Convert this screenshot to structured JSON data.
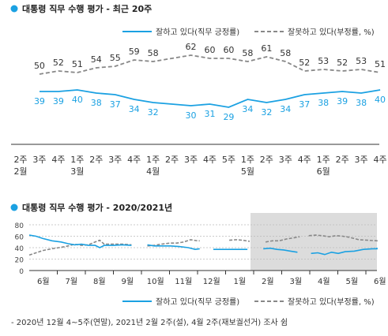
{
  "colors": {
    "approve": "#1ba1e2",
    "disapprove": "#888888",
    "bullet": "#1ba1e2",
    "shade": "#dcdcdc"
  },
  "chart_data": [
    {
      "type": "line",
      "title": "대통령 직무 수행 평가 - 최근 20주",
      "x_week": [
        "2주",
        "3주",
        "4주",
        "1주",
        "2주",
        "3주",
        "4주",
        "1주",
        "2주",
        "3주",
        "4주",
        "5주",
        "1주",
        "2주",
        "3주",
        "4주",
        "1주",
        "2주",
        "3주",
        "4주"
      ],
      "x_month": [
        "2월",
        "",
        "",
        "3월",
        "",
        "",
        "",
        "4월",
        "",
        "",
        "",
        "",
        "5월",
        "",
        "",
        "",
        "6월",
        "",
        "",
        ""
      ],
      "ylim": [
        0,
        80
      ],
      "series": [
        {
          "name": "잘하고 있다(직무 긍정률)",
          "style": "solid",
          "values": [
            null,
            39,
            39,
            40,
            38,
            37,
            34,
            32,
            null,
            30,
            31,
            29,
            34,
            32,
            34,
            37,
            38,
            39,
            38,
            40
          ]
        },
        {
          "name": "잘못하고 있다(부정률, %)",
          "style": "dashed",
          "values": [
            null,
            50,
            52,
            51,
            54,
            55,
            59,
            58,
            null,
            62,
            60,
            60,
            58,
            61,
            58,
            52,
            53,
            52,
            53,
            51
          ]
        }
      ]
    },
    {
      "type": "line",
      "title": "대통령 직무 수행 평가 - 2020/2021년",
      "yticks": [
        0,
        20,
        40,
        60,
        80
      ],
      "ylim": [
        0,
        80
      ],
      "month_labels": [
        "6월",
        "7월",
        "8월",
        "9월",
        "10월",
        "11월",
        "12월",
        "1월",
        "2월",
        "3월",
        "4월",
        "5월",
        "6월"
      ],
      "shaded_from_month_index": 8,
      "series": [
        {
          "name": "잘하고 있다(직무 긍정률)",
          "style": "solid",
          "segments": [
            [
              [
                0,
                62
              ],
              [
                0.3,
                60
              ],
              [
                0.6,
                56
              ],
              [
                1,
                52
              ],
              [
                1.4,
                50
              ],
              [
                1.7,
                47
              ],
              [
                2,
                45
              ],
              [
                2.3,
                46
              ],
              [
                2.6,
                44
              ],
              [
                2.9,
                44
              ],
              [
                3.1,
                40
              ],
              [
                3.3,
                44
              ],
              [
                3.7,
                44
              ],
              [
                4.1,
                45
              ],
              [
                4.5,
                44
              ]
            ],
            [
              [
                5.2,
                45
              ],
              [
                5.5,
                43
              ],
              [
                5.8,
                43
              ],
              [
                6.2,
                43
              ],
              [
                6.6,
                42
              ],
              [
                7,
                40
              ],
              [
                7.3,
                37
              ],
              [
                7.5,
                38
              ]
            ],
            [
              [
                8.1,
                37
              ],
              [
                8.5,
                37
              ],
              [
                8.9,
                37
              ],
              [
                9.3,
                37
              ],
              [
                9.6,
                37
              ]
            ],
            [
              [
                10.3,
                38
              ],
              [
                10.6,
                39
              ],
              [
                10.9,
                37
              ],
              [
                11.2,
                36
              ],
              [
                11.5,
                34
              ],
              [
                11.8,
                32
              ]
            ],
            [
              [
                12.4,
                30
              ],
              [
                12.7,
                31
              ],
              [
                13,
                28
              ],
              [
                13.3,
                32
              ],
              [
                13.6,
                30
              ],
              [
                13.9,
                33
              ],
              [
                14.3,
                34
              ],
              [
                14.7,
                37
              ],
              [
                15.1,
                38
              ],
              [
                15.5,
                38
              ],
              [
                15.8,
                40
              ]
            ]
          ]
        },
        {
          "name": "잘못하고 있다(부정률, %)",
          "style": "dashed",
          "segments": [
            [
              [
                0,
                27
              ],
              [
                0.3,
                31
              ],
              [
                0.6,
                35
              ],
              [
                1,
                38
              ],
              [
                1.3,
                40
              ],
              [
                1.6,
                42
              ],
              [
                2,
                46
              ],
              [
                2.3,
                44
              ],
              [
                2.6,
                45
              ],
              [
                2.9,
                50
              ],
              [
                3.1,
                53
              ],
              [
                3.3,
                46
              ],
              [
                3.7,
                46
              ],
              [
                4.1,
                46
              ],
              [
                4.5,
                45
              ]
            ],
            [
              [
                5.2,
                43
              ],
              [
                5.5,
                44
              ],
              [
                5.8,
                46
              ],
              [
                6.2,
                48
              ],
              [
                6.5,
                48
              ],
              [
                6.8,
                50
              ],
              [
                7.1,
                54
              ],
              [
                7.4,
                52
              ],
              [
                7.5,
                52
              ]
            ],
            [
              [
                8.8,
                53
              ],
              [
                9.1,
                54
              ],
              [
                9.4,
                53
              ],
              [
                9.7,
                51
              ]
            ],
            [
              [
                10.4,
                50
              ],
              [
                10.7,
                52
              ],
              [
                11,
                52
              ],
              [
                11.3,
                55
              ],
              [
                11.6,
                57
              ],
              [
                11.9,
                59
              ]
            ],
            [
              [
                12.3,
                61
              ],
              [
                12.6,
                62
              ],
              [
                12.9,
                61
              ],
              [
                13.2,
                59
              ],
              [
                13.5,
                61
              ],
              [
                13.8,
                60
              ],
              [
                14.1,
                58
              ],
              [
                14.5,
                54
              ],
              [
                14.9,
                53
              ],
              [
                15.3,
                52
              ],
              [
                15.8,
                50
              ]
            ]
          ]
        }
      ]
    }
  ],
  "footnote": "- 2020년 12월 4~5주(연말), 2021년 2월 2주(설), 4월 2주(재보궐선거) 조사 쉼"
}
